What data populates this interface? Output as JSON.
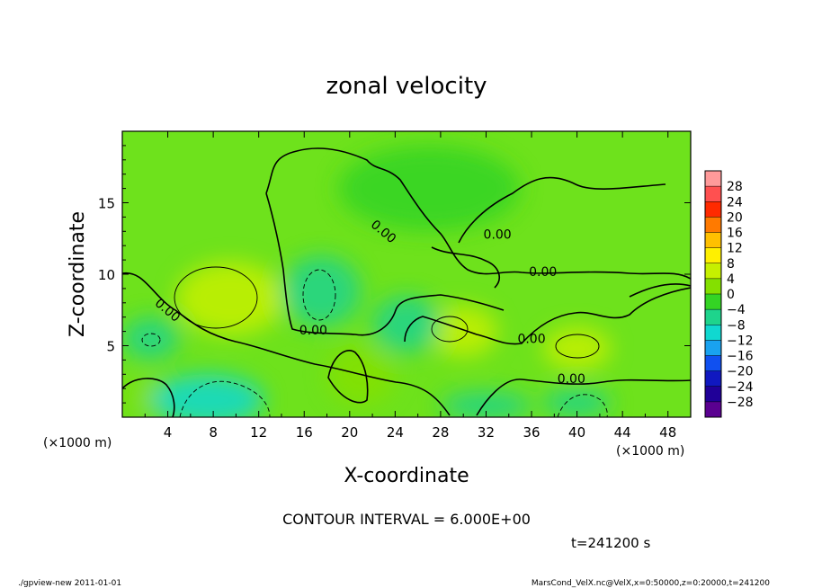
{
  "chart_data": {
    "type": "heatmap",
    "title": "zonal velocity",
    "xlabel": "X-coordinate",
    "ylabel": "Z-coordinate",
    "x_unit_note_left": "(×1000 m)",
    "x_unit_note_right": "(×1000 m)",
    "xlim": [
      0,
      50
    ],
    "ylim": [
      0,
      20
    ],
    "x_ticks": [
      4,
      8,
      12,
      16,
      20,
      24,
      28,
      32,
      36,
      40,
      44,
      48
    ],
    "y_ticks": [
      5,
      10,
      15
    ],
    "contour_interval_text": "CONTOUR INTERVAL = 6.000E+00",
    "time_text": "t=241200 s",
    "contour_label": "0.00",
    "zero_contour_label_positions": [
      [
        4,
        7.5
      ],
      [
        16.8,
        6.1
      ],
      [
        23,
        13
      ],
      [
        33,
        12.8
      ],
      [
        37,
        10.2
      ],
      [
        36,
        5.5
      ],
      [
        39.5,
        2.7
      ]
    ],
    "colorbar": {
      "labels": [
        "28",
        "24",
        "20",
        "16",
        "12",
        "8",
        "4",
        "0",
        "−4",
        "−8",
        "−12",
        "−16",
        "−20",
        "−24",
        "−28"
      ],
      "colors": [
        "#ff9a9a",
        "#ff5050",
        "#ff2a00",
        "#ff7a00",
        "#ffc000",
        "#fff000",
        "#c6f000",
        "#84e000",
        "#34d424",
        "#1ed48c",
        "#10d8d0",
        "#19a2f0",
        "#1050f0",
        "#1018c0",
        "#200098",
        "#5a0090"
      ]
    },
    "features": [
      {
        "kind": "max",
        "x": 9.5,
        "z": 8.3,
        "value": 7,
        "rx": 4.8,
        "rz": 2.6
      },
      {
        "kind": "max",
        "x": 30,
        "z": 6,
        "value": 5,
        "rx": 3,
        "rz": 1.8
      },
      {
        "kind": "max",
        "x": 40,
        "z": 4.8,
        "value": 5,
        "rx": 3,
        "rz": 1.5
      },
      {
        "kind": "max",
        "x": 21,
        "z": 3,
        "value": 4,
        "rx": 3,
        "rz": 2.2
      },
      {
        "kind": "max",
        "x": 2,
        "z": 1.5,
        "value": 4,
        "rx": 1.5,
        "rz": 1.2
      },
      {
        "kind": "min",
        "x": 7.5,
        "z": 1.2,
        "value": -8,
        "rx": 5,
        "rz": 1.8
      },
      {
        "kind": "min",
        "x": 17.5,
        "z": 8.8,
        "value": -6,
        "rx": 3.5,
        "rz": 2.5
      },
      {
        "kind": "min",
        "x": 2.5,
        "z": 5.5,
        "value": -5,
        "rx": 2.5,
        "rz": 1.5
      },
      {
        "kind": "min",
        "x": 25,
        "z": 6.5,
        "value": -4,
        "rx": 3,
        "rz": 2
      },
      {
        "kind": "min",
        "x": 32,
        "z": 0.8,
        "value": -4,
        "rx": 4,
        "rz": 1
      },
      {
        "kind": "min",
        "x": 40,
        "z": 1,
        "value": -6,
        "rx": 3,
        "rz": 1
      },
      {
        "kind": "min",
        "x": 27,
        "z": 16,
        "value": -2,
        "rx": 8,
        "rz": 3
      }
    ]
  },
  "footer": {
    "left": "./gpview-new  2011-01-01",
    "right": "MarsCond_VelX.nc@VelX,x=0:50000,z=0:20000,t=241200"
  }
}
